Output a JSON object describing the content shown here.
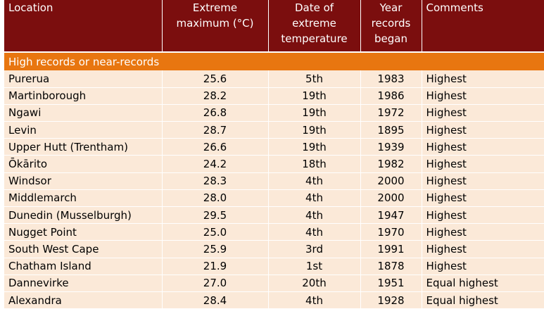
{
  "header": {
    "location": "Location",
    "max": [
      "Extreme",
      "maximum (°C)"
    ],
    "date": [
      "Date of",
      "extreme",
      "temperature"
    ],
    "year": [
      "Year",
      "records",
      "began"
    ],
    "comments": "Comments"
  },
  "section_title": "High records or near-records",
  "rows": [
    {
      "location": "Purerua",
      "max": "25.6",
      "date": "5th",
      "year": "1983",
      "comment": "Highest"
    },
    {
      "location": "Martinborough",
      "max": "28.2",
      "date": "19th",
      "year": "1986",
      "comment": "Highest"
    },
    {
      "location": "Ngawi",
      "max": "26.8",
      "date": "19th",
      "year": "1972",
      "comment": "Highest"
    },
    {
      "location": "Levin",
      "max": "28.7",
      "date": "19th",
      "year": "1895",
      "comment": "Highest"
    },
    {
      "location": "Upper Hutt (Trentham)",
      "max": "26.6",
      "date": "19th",
      "year": "1939",
      "comment": "Highest"
    },
    {
      "location": "Ōkārito",
      "max": "24.2",
      "date": "18th",
      "year": "1982",
      "comment": "Highest"
    },
    {
      "location": "Windsor",
      "max": "28.3",
      "date": "4th",
      "year": "2000",
      "comment": "Highest"
    },
    {
      "location": "Middlemarch",
      "max": "28.0",
      "date": "4th",
      "year": "2000",
      "comment": "Highest"
    },
    {
      "location": "Dunedin (Musselburgh)",
      "max": "29.5",
      "date": "4th",
      "year": "1947",
      "comment": "Highest"
    },
    {
      "location": "Nugget Point",
      "max": "25.0",
      "date": "4th",
      "year": "1970",
      "comment": "Highest"
    },
    {
      "location": "South West Cape",
      "max": "25.9",
      "date": "3rd",
      "year": "1991",
      "comment": "Highest"
    },
    {
      "location": "Chatham Island",
      "max": "21.9",
      "date": "1st",
      "year": "1878",
      "comment": "Highest"
    },
    {
      "location": "Dannevirke",
      "max": "27.0",
      "date": "20th",
      "year": "1951",
      "comment": "Equal highest"
    },
    {
      "location": "Alexandra",
      "max": "28.4",
      "date": "4th",
      "year": "1928",
      "comment": "Equal highest"
    }
  ],
  "colors": {
    "header_bg": "#7b0e0e",
    "section_bg": "#e87610",
    "row_bg": "#fbe9d8"
  }
}
